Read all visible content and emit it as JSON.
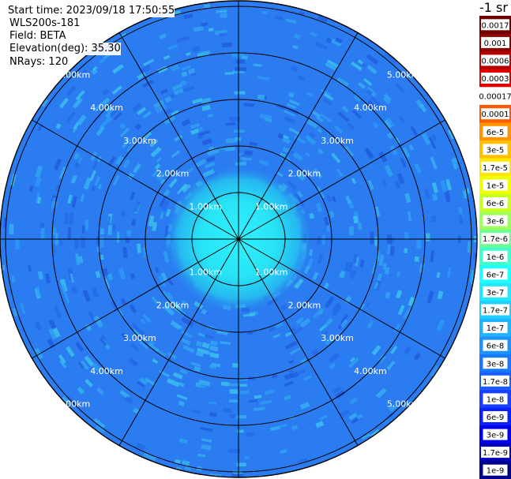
{
  "header": {
    "start_time": "Start time: 2023/09/18 17:50:55",
    "instrument": "WLS200s-181",
    "field": "Field: BETA",
    "elevation": "Elevation(deg): 35.30",
    "nrays": "NRays: 120"
  },
  "ppi": {
    "ring_labels": [
      "1.00km",
      "2.00km",
      "3.00km",
      "4.00km",
      "5.00km"
    ],
    "spoke_count": 12,
    "background_color": "#2a7cf0"
  },
  "colorbar": {
    "unit_title": "-1 sr",
    "labels": [
      "0.0017",
      "0.001",
      "0.0006",
      "0.0003",
      "0.00017",
      "0.0001",
      "6e-5",
      "3e-5",
      "1.7e-5",
      "1e-5",
      "6e-6",
      "3e-6",
      "1.7e-6",
      "1e-6",
      "6e-7",
      "3e-7",
      "1.7e-7",
      "1e-7",
      "6e-8",
      "3e-8",
      "1.7e-8",
      "1e-8",
      "6e-9",
      "3e-9",
      "1.7e-9",
      "1e-9"
    ],
    "colors": [
      "#6e0000",
      "#8e0000",
      "#b40000",
      "#e00000",
      "#ffffff",
      "#ff5a00",
      "#ff9400",
      "#ffc000",
      "#ffe800",
      "#f0ff00",
      "#c8ff20",
      "#a0ff5a",
      "#6cff94",
      "#40ffcc",
      "#20ffff",
      "#20e8ff",
      "#20d0ff",
      "#20b4ff",
      "#1c94ff",
      "#1a78ff",
      "#1a5cff",
      "#1a40ff",
      "#0a20ff",
      "#0000e8",
      "#0000b8",
      "#00008c"
    ]
  }
}
